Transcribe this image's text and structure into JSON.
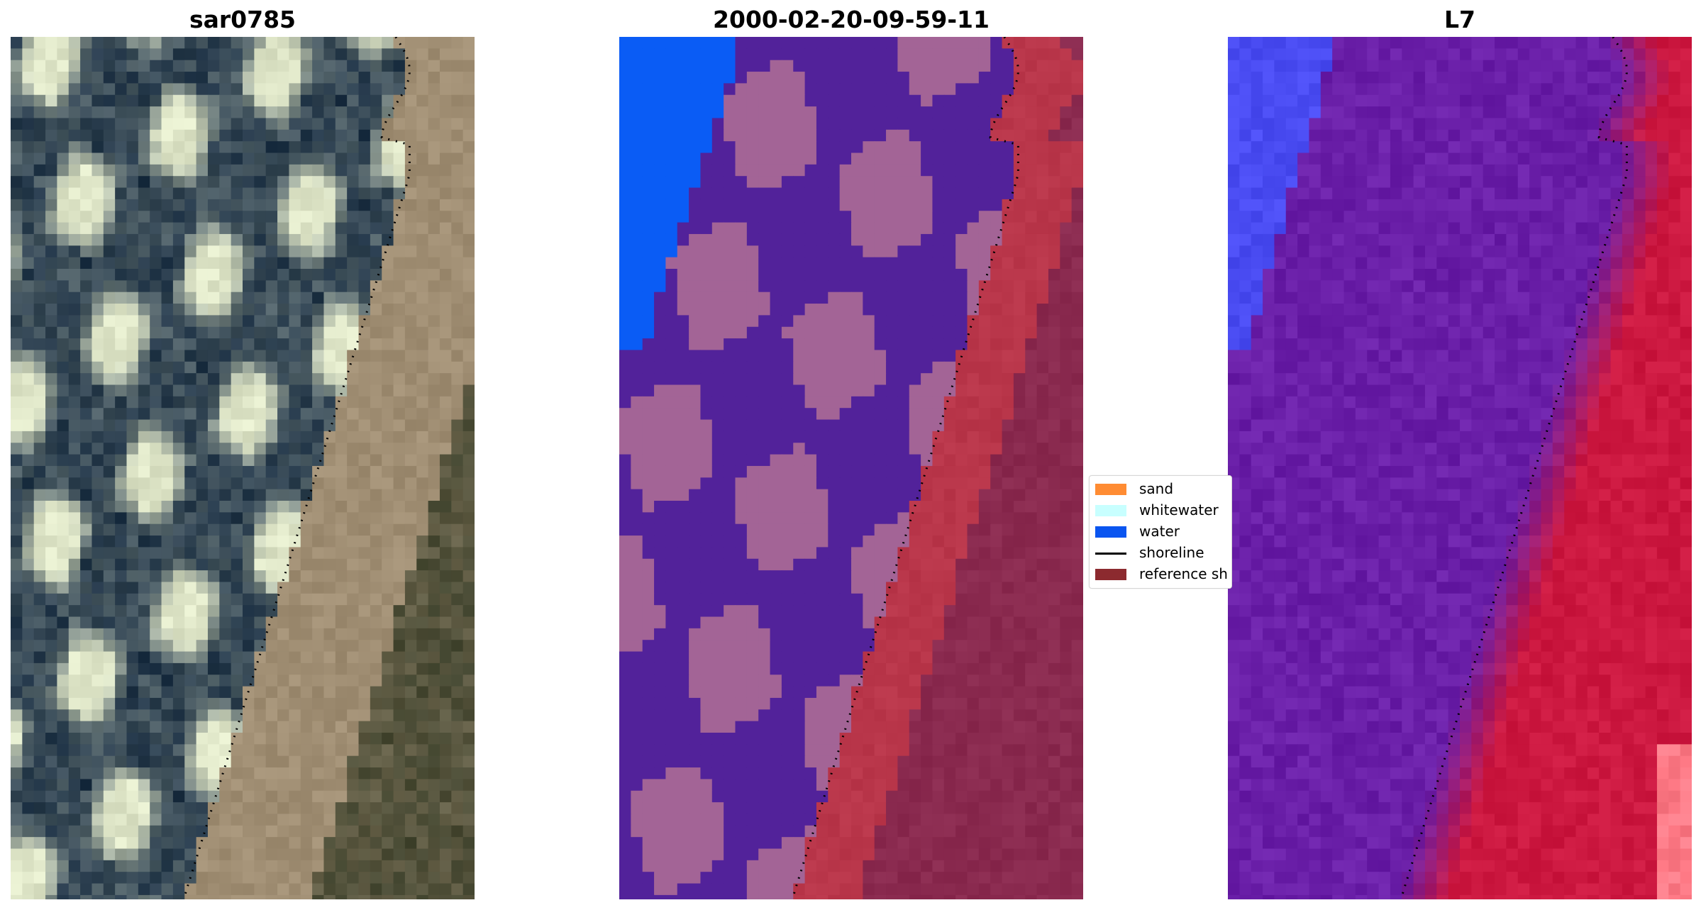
{
  "panels": [
    {
      "title": "sar0785"
    },
    {
      "title": "2000-02-20-09-59-11"
    },
    {
      "title": "L7"
    }
  ],
  "legend": {
    "items": [
      {
        "label": "sand",
        "color": "#ff8c33",
        "kind": "patch"
      },
      {
        "label": "whitewater",
        "color": "#c8ffff",
        "kind": "patch"
      },
      {
        "label": "water",
        "color": "#0a55f0",
        "kind": "patch"
      },
      {
        "label": "shoreline",
        "color": "#000000",
        "kind": "line"
      },
      {
        "label": "reference sh",
        "color": "#8c2a2f",
        "kind": "patch"
      }
    ]
  },
  "colors": {
    "rgb_water_dark": "#1f3346",
    "rgb_whitewater": "#dfe6c8",
    "rgb_sand": "#a08e73",
    "rgb_vegetation": "#42452f",
    "class_water": "#0a5cf5",
    "class_whitewater_mix": "#a36496",
    "class_wave": "#52229a",
    "class_sand_ref": "#b9364a",
    "class_land": "#8a2a4f",
    "fc_water": "#4a4cf2",
    "fc_surf": "#6a1fa8",
    "fc_land": "#cc1840",
    "fc_bright": "#ff7a86"
  }
}
